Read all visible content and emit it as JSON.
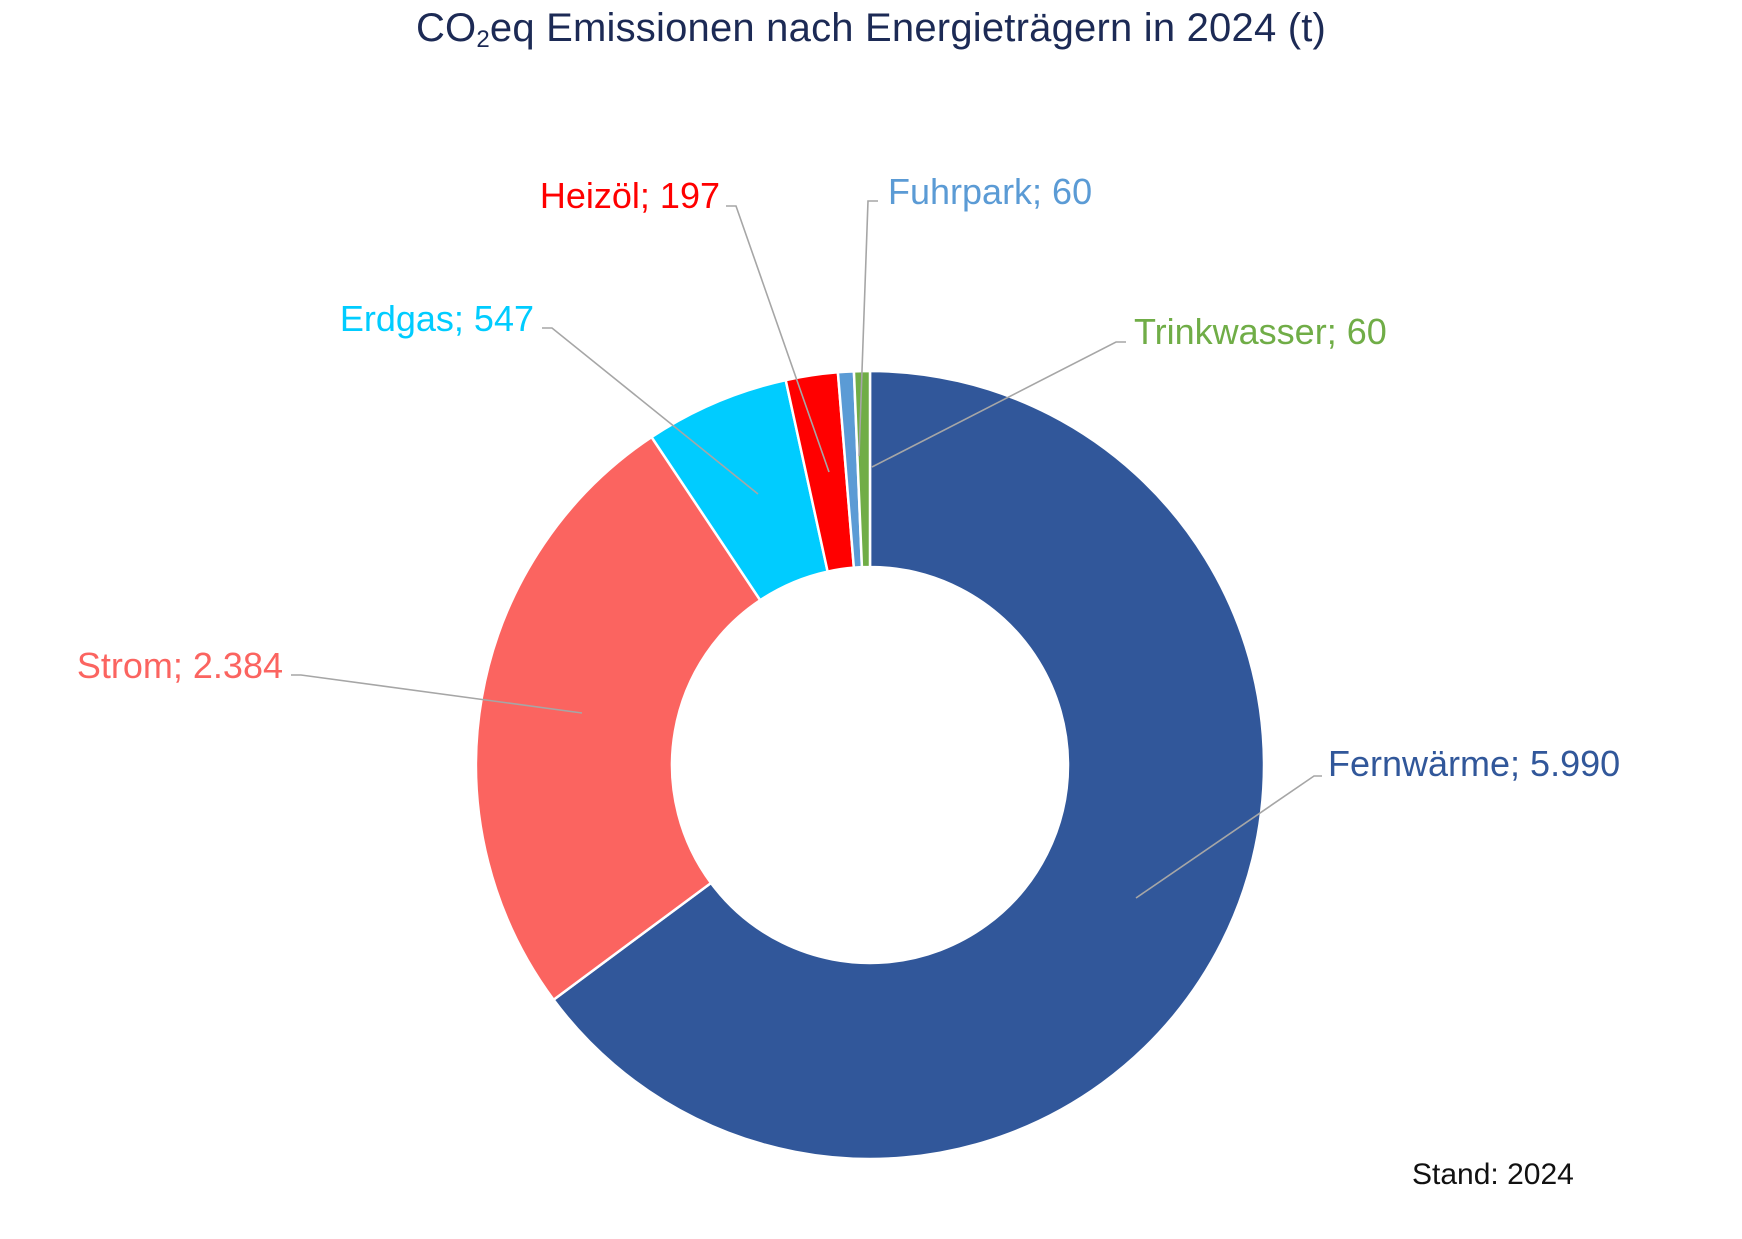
{
  "chart_data": {
    "type": "pie",
    "title": {
      "prefix": "CO",
      "subscript": "2",
      "suffix": "eq Emissionen nach Energieträgern in 2024 (t)"
    },
    "donut": true,
    "slices": [
      {
        "name": "Fernwärme",
        "value": 5990,
        "value_label": "5.990",
        "color": "#31579a"
      },
      {
        "name": "Strom",
        "value": 2384,
        "value_label": "2.384",
        "color": "#fb6460"
      },
      {
        "name": "Erdgas",
        "value": 547,
        "value_label": "547",
        "color": "#00ccff"
      },
      {
        "name": "Heizöl",
        "value": 197,
        "value_label": "197",
        "color": "#ff0000"
      },
      {
        "name": "Fuhrpark",
        "value": 60,
        "value_label": "60",
        "color": "#5b9bd5"
      },
      {
        "name": "Trinkwasser",
        "value": 60,
        "value_label": "60",
        "color": "#70ad47"
      }
    ],
    "label_separator": ";  ",
    "leader_line_color": "#a6a6a6",
    "legend": "none"
  },
  "footer": {
    "note": "Stand: 2024"
  }
}
